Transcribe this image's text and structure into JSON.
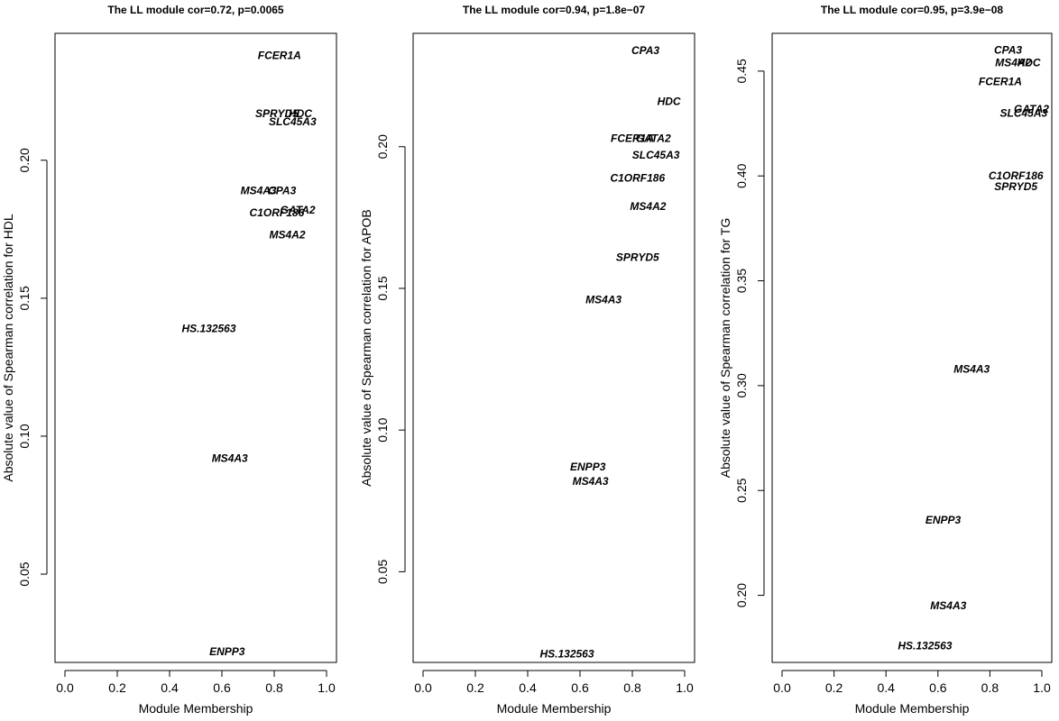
{
  "chart_data": [
    {
      "type": "scatter",
      "title": "The LL module     cor=0.72, p=0.0065",
      "xlabel": "Module Membership",
      "ylabel": "Absolute value of Spearman correlation for HDL",
      "xlim": [
        0.0,
        1.0
      ],
      "ylim": [
        0.018,
        0.246
      ],
      "xticks": [
        "0.0",
        "0.2",
        "0.4",
        "0.6",
        "0.8",
        "1.0"
      ],
      "yticks": [
        "0.05",
        "0.10",
        "0.15",
        "0.20"
      ],
      "grid": false,
      "points": [
        {
          "label": "FCER1A",
          "x": 0.82,
          "y": 0.238
        },
        {
          "label": "SPRYD5",
          "x": 0.81,
          "y": 0.217
        },
        {
          "label": "HDC",
          "x": 0.9,
          "y": 0.217
        },
        {
          "label": "SLC45A3",
          "x": 0.87,
          "y": 0.214
        },
        {
          "label": "MS4A3",
          "x": 0.74,
          "y": 0.189
        },
        {
          "label": "CPA3",
          "x": 0.83,
          "y": 0.189
        },
        {
          "label": "GATA2",
          "x": 0.89,
          "y": 0.182
        },
        {
          "label": "C1ORF186",
          "x": 0.81,
          "y": 0.181
        },
        {
          "label": "MS4A2",
          "x": 0.85,
          "y": 0.173
        },
        {
          "label": "HS.132563",
          "x": 0.55,
          "y": 0.139
        },
        {
          "label": "MS4A3",
          "x": 0.63,
          "y": 0.092
        },
        {
          "label": "ENPP3",
          "x": 0.62,
          "y": 0.022
        }
      ]
    },
    {
      "type": "scatter",
      "title": "The LL module     cor=0.94, p=1.8e−07",
      "xlabel": "Module Membership",
      "ylabel": "Absolute value of Spearman correlation for APOB",
      "xlim": [
        0.0,
        1.0
      ],
      "ylim": [
        0.018,
        0.24
      ],
      "xticks": [
        "0.0",
        "0.2",
        "0.4",
        "0.6",
        "0.8",
        "1.0"
      ],
      "yticks": [
        "0.05",
        "0.10",
        "0.15",
        "0.20"
      ],
      "grid": false,
      "points": [
        {
          "label": "CPA3",
          "x": 0.85,
          "y": 0.234
        },
        {
          "label": "HDC",
          "x": 0.94,
          "y": 0.216
        },
        {
          "label": "FCER1A",
          "x": 0.8,
          "y": 0.203
        },
        {
          "label": "GATA2",
          "x": 0.88,
          "y": 0.203
        },
        {
          "label": "SLC45A3",
          "x": 0.89,
          "y": 0.197
        },
        {
          "label": "C1ORF186",
          "x": 0.82,
          "y": 0.189
        },
        {
          "label": "MS4A2",
          "x": 0.86,
          "y": 0.179
        },
        {
          "label": "SPRYD5",
          "x": 0.82,
          "y": 0.161
        },
        {
          "label": "MS4A3",
          "x": 0.69,
          "y": 0.146
        },
        {
          "label": "ENPP3",
          "x": 0.63,
          "y": 0.087
        },
        {
          "label": "MS4A3",
          "x": 0.64,
          "y": 0.082
        },
        {
          "label": "HS.132563",
          "x": 0.55,
          "y": 0.021
        }
      ]
    },
    {
      "type": "scatter",
      "title": "The LL module     cor=0.95, p=3.9e−08",
      "xlabel": "Module Membership",
      "ylabel": "Absolute value of Spearman correlation for TG",
      "xlim": [
        0.0,
        1.0
      ],
      "ylim": [
        0.168,
        0.468
      ],
      "xticks": [
        "0.0",
        "0.2",
        "0.4",
        "0.6",
        "0.8",
        "1.0"
      ],
      "yticks": [
        "0.20",
        "0.25",
        "0.30",
        "0.35",
        "0.40",
        "0.45"
      ],
      "grid": false,
      "points": [
        {
          "label": "CPA3",
          "x": 0.87,
          "y": 0.46
        },
        {
          "label": "MS4A2",
          "x": 0.89,
          "y": 0.454
        },
        {
          "label": "HDC",
          "x": 0.95,
          "y": 0.454
        },
        {
          "label": "FCER1A",
          "x": 0.84,
          "y": 0.445
        },
        {
          "label": "GATA2",
          "x": 0.96,
          "y": 0.432
        },
        {
          "label": "SLC45A3",
          "x": 0.93,
          "y": 0.43
        },
        {
          "label": "C1ORF186",
          "x": 0.9,
          "y": 0.4
        },
        {
          "label": "SPRYD5",
          "x": 0.9,
          "y": 0.395
        },
        {
          "label": "MS4A3",
          "x": 0.73,
          "y": 0.308
        },
        {
          "label": "ENPP3",
          "x": 0.62,
          "y": 0.236
        },
        {
          "label": "MS4A3",
          "x": 0.64,
          "y": 0.195
        },
        {
          "label": "HS.132563",
          "x": 0.55,
          "y": 0.176
        }
      ]
    }
  ]
}
